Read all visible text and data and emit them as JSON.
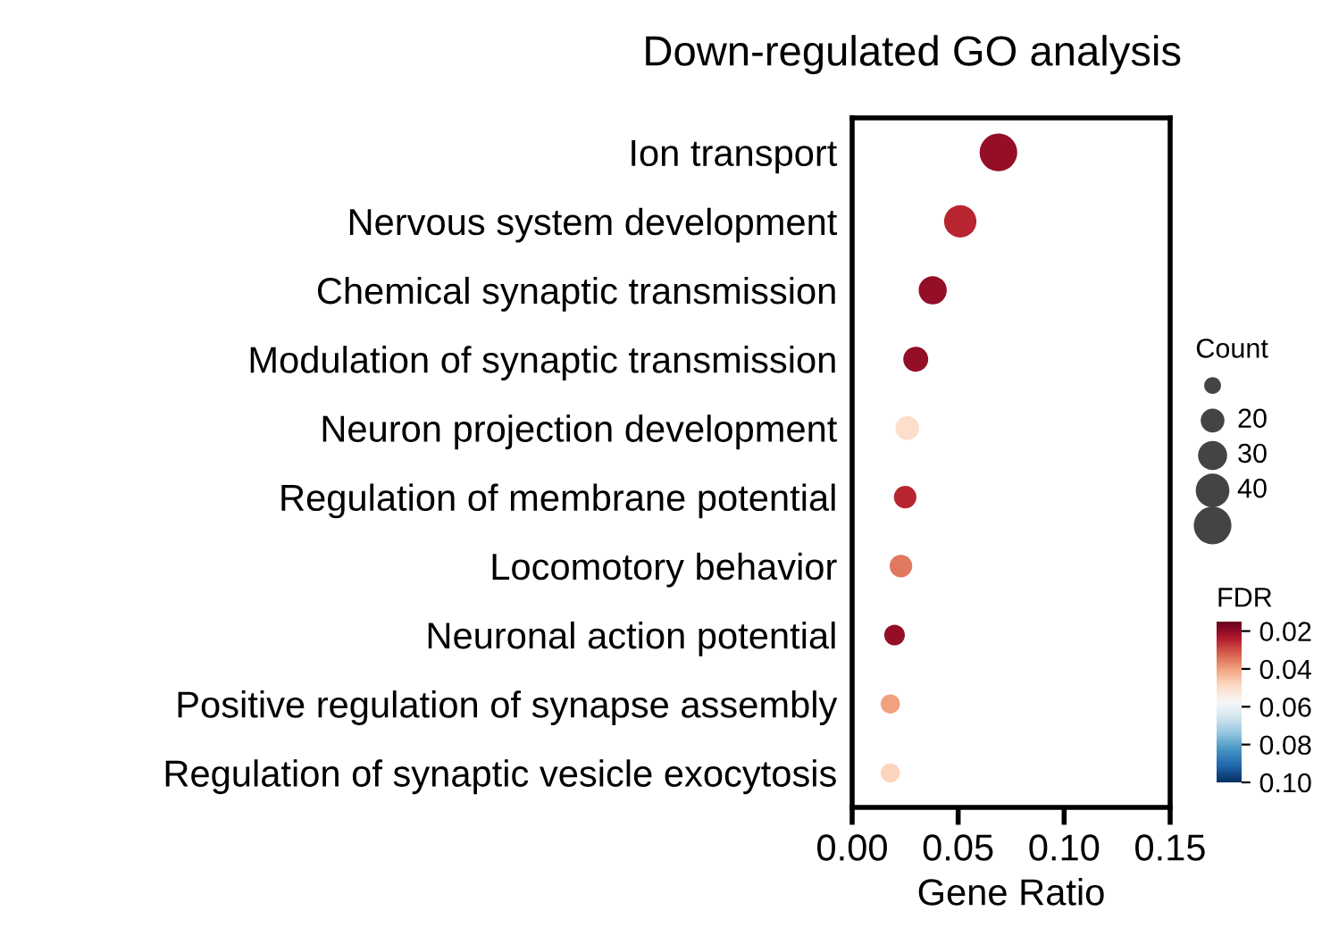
{
  "chart_data": {
    "type": "bubble",
    "title": "Down-regulated GO analysis",
    "xlabel": "Gene Ratio",
    "legend_title": "Count",
    "clabel": "FDR",
    "categories": [
      "Ion transport",
      "Nervous system development",
      "Chemical synaptic transmission",
      "Modulation of synaptic transmission",
      "Neuron projection development",
      "Regulation of membrane potential",
      "Locomotory behavior",
      "Neuronal action potential",
      "Positive regulation of synapse assembly",
      "Regulation of synaptic vesicle exocytosis"
    ],
    "orientation": "horizontal",
    "values": [
      0.069,
      0.051,
      0.038,
      0.03,
      0.026,
      0.025,
      0.023,
      0.02,
      0.018,
      0.018
    ],
    "sizes": [
      50,
      37,
      28,
      22,
      20,
      18,
      18,
      15,
      13,
      13
    ],
    "cvalues": [
      0.02,
      0.025,
      0.02,
      0.02,
      0.05,
      0.025,
      0.035,
      0.02,
      0.04,
      0.048
    ],
    "size_legend": [
      20,
      30,
      40
    ],
    "clim": [
      0.015,
      0.1
    ],
    "cticks": [
      {
        "value": 0.02,
        "label": "0.02"
      },
      {
        "value": 0.04,
        "label": "0.04"
      },
      {
        "value": 0.06,
        "label": "0.06"
      },
      {
        "value": 0.08,
        "label": "0.08"
      },
      {
        "value": 0.1,
        "label": "0.10"
      }
    ],
    "xlim": [
      0,
      0.15
    ],
    "xticks": [
      {
        "value": 0,
        "label": "0.00"
      },
      {
        "value": 0.05,
        "label": "0.05"
      },
      {
        "value": 0.1,
        "label": "0.10"
      },
      {
        "value": 0.15,
        "label": "0.15"
      }
    ],
    "grid": false
  }
}
